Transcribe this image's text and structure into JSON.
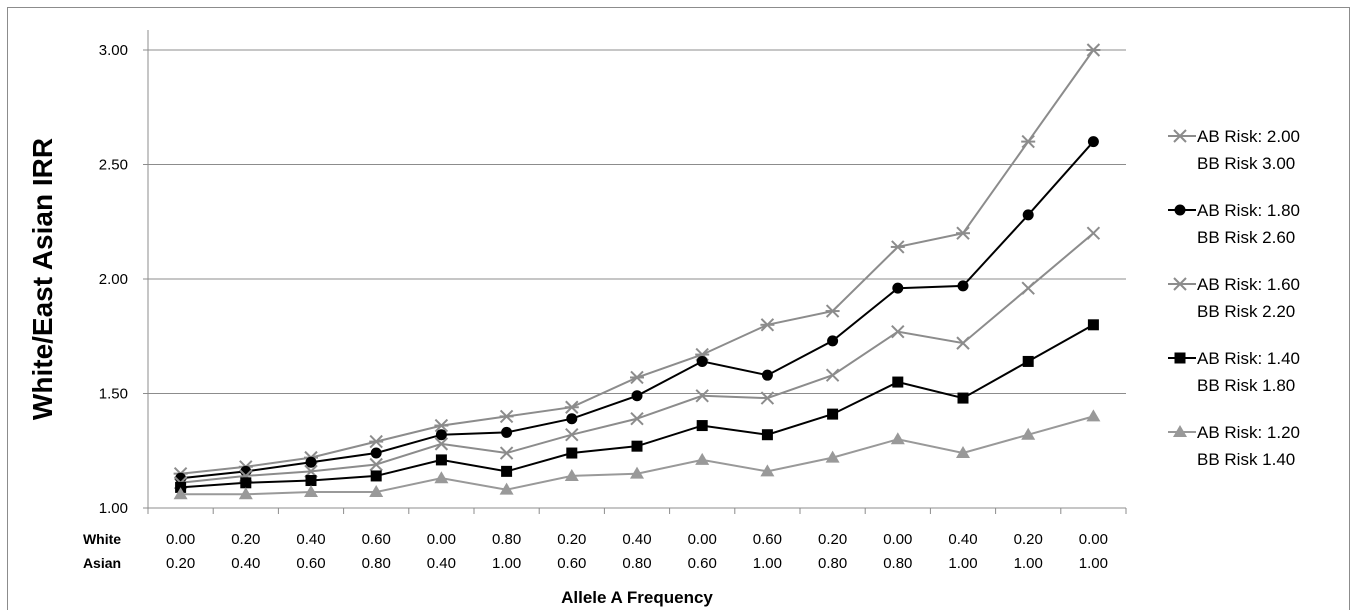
{
  "chart_data": {
    "type": "line",
    "title": "",
    "ylabel": "White/East Asian IRR",
    "xlabel": "Allele A Frequency",
    "ylim": [
      1.0,
      3.0
    ],
    "yticks": [
      "1.00",
      "1.50",
      "2.00",
      "2.50",
      "3.00"
    ],
    "grid": true,
    "legend_position": "right",
    "row_labels": [
      "White",
      "Asian"
    ],
    "categories": [
      {
        "white": "0.00",
        "asian": "0.20"
      },
      {
        "white": "0.20",
        "asian": "0.40"
      },
      {
        "white": "0.40",
        "asian": "0.60"
      },
      {
        "white": "0.60",
        "asian": "0.80"
      },
      {
        "white": "0.00",
        "asian": "0.40"
      },
      {
        "white": "0.80",
        "asian": "1.00"
      },
      {
        "white": "0.20",
        "asian": "0.60"
      },
      {
        "white": "0.40",
        "asian": "0.80"
      },
      {
        "white": "0.00",
        "asian": "0.60"
      },
      {
        "white": "0.60",
        "asian": "1.00"
      },
      {
        "white": "0.20",
        "asian": "0.80"
      },
      {
        "white": "0.00",
        "asian": "0.80"
      },
      {
        "white": "0.40",
        "asian": "1.00"
      },
      {
        "white": "0.20",
        "asian": "1.00"
      },
      {
        "white": "0.00",
        "asian": "1.00"
      }
    ],
    "series": [
      {
        "name_line1": "AB Risk: 2.00",
        "name_line2": "BB Risk 3.00",
        "marker": "asterisk",
        "color": "#8c8c8c",
        "values": [
          1.15,
          1.18,
          1.22,
          1.29,
          1.36,
          1.4,
          1.44,
          1.57,
          1.67,
          1.8,
          1.86,
          2.14,
          2.2,
          2.6,
          3.0
        ]
      },
      {
        "name_line1": "AB Risk: 1.80",
        "name_line2": "BB Risk 2.60",
        "marker": "circle",
        "color": "#000000",
        "values": [
          1.13,
          1.16,
          1.2,
          1.24,
          1.32,
          1.33,
          1.39,
          1.49,
          1.64,
          1.58,
          1.73,
          1.96,
          1.97,
          2.28,
          2.6
        ]
      },
      {
        "name_line1": "AB Risk: 1.60",
        "name_line2": "BB Risk 2.20",
        "marker": "x",
        "color": "#8c8c8c",
        "values": [
          1.11,
          1.14,
          1.16,
          1.19,
          1.28,
          1.24,
          1.32,
          1.39,
          1.49,
          1.48,
          1.58,
          1.77,
          1.72,
          1.96,
          2.2
        ]
      },
      {
        "name_line1": "AB Risk: 1.40",
        "name_line2": "BB Risk 1.80",
        "marker": "square",
        "color": "#000000",
        "values": [
          1.09,
          1.11,
          1.12,
          1.14,
          1.21,
          1.16,
          1.24,
          1.27,
          1.36,
          1.32,
          1.41,
          1.55,
          1.48,
          1.64,
          1.8
        ]
      },
      {
        "name_line1": "AB Risk: 1.20",
        "name_line2": "BB Risk 1.40",
        "marker": "triangle",
        "color": "#999999",
        "values": [
          1.06,
          1.06,
          1.07,
          1.07,
          1.13,
          1.08,
          1.14,
          1.15,
          1.21,
          1.16,
          1.22,
          1.3,
          1.24,
          1.32,
          1.4
        ]
      }
    ]
  }
}
